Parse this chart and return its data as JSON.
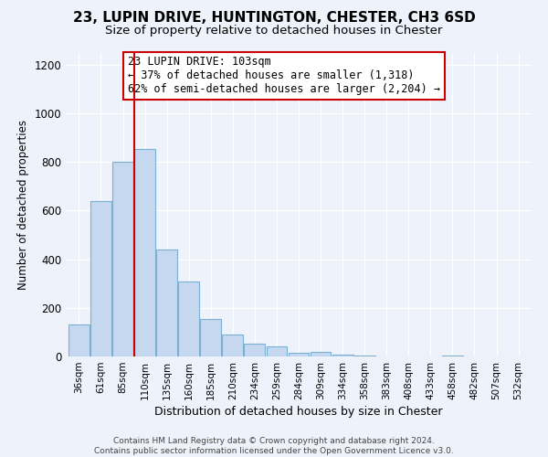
{
  "title": "23, LUPIN DRIVE, HUNTINGTON, CHESTER, CH3 6SD",
  "subtitle": "Size of property relative to detached houses in Chester",
  "xlabel": "Distribution of detached houses by size in Chester",
  "ylabel": "Number of detached properties",
  "bar_color": "#c5d8f0",
  "bar_edge_color": "#7bafd4",
  "bin_labels": [
    "36sqm",
    "61sqm",
    "85sqm",
    "110sqm",
    "135sqm",
    "160sqm",
    "185sqm",
    "210sqm",
    "234sqm",
    "259sqm",
    "284sqm",
    "309sqm",
    "334sqm",
    "358sqm",
    "383sqm",
    "408sqm",
    "433sqm",
    "458sqm",
    "482sqm",
    "507sqm",
    "532sqm"
  ],
  "bar_values": [
    130,
    640,
    800,
    855,
    440,
    310,
    155,
    90,
    52,
    42,
    15,
    20,
    9,
    3,
    0,
    0,
    0,
    3,
    0,
    0,
    0
  ],
  "vline_index": 3,
  "vline_color": "#cc0000",
  "ylim": [
    0,
    1250
  ],
  "yticks": [
    0,
    200,
    400,
    600,
    800,
    1000,
    1200
  ],
  "annotation_line1": "23 LUPIN DRIVE: 103sqm",
  "annotation_line2": "← 37% of detached houses are smaller (1,318)",
  "annotation_line3": "62% of semi-detached houses are larger (2,204) →",
  "annotation_box_color": "#ffffff",
  "annotation_box_edge": "#cc0000",
  "footer_line1": "Contains HM Land Registry data © Crown copyright and database right 2024.",
  "footer_line2": "Contains public sector information licensed under the Open Government Licence v3.0.",
  "background_color": "#eef2fa",
  "grid_color": "#ffffff",
  "title_fontsize": 11,
  "subtitle_fontsize": 9.5,
  "ylabel_fontsize": 8.5,
  "xlabel_fontsize": 9
}
